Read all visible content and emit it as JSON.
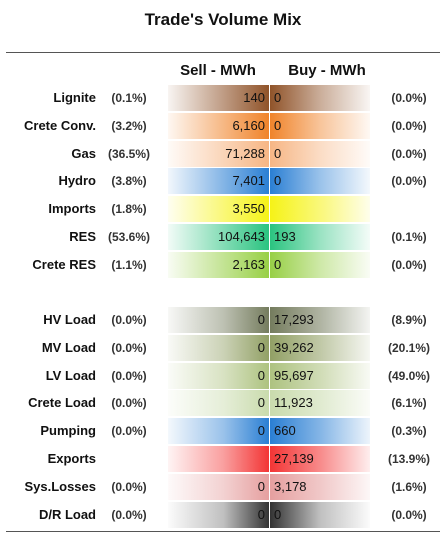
{
  "title": "Trade's Volume Mix",
  "headers": {
    "sell": "Sell - MWh",
    "buy": "Buy - MWh"
  },
  "chart_data": {
    "type": "table",
    "title": "Trade's Volume Mix",
    "columns": [
      "",
      "",
      "Sell - MWh",
      "Buy - MWh",
      ""
    ],
    "groups": [
      {
        "rows": [
          {
            "name": "Lignite",
            "sell_pct": "(0.1%)",
            "sell": "140",
            "buy": "0",
            "buy_pct": "(0.0%)",
            "color": "#8a4a1e"
          },
          {
            "name": "Crete Conv.",
            "sell_pct": "(3.2%)",
            "sell": "6,160",
            "buy": "0",
            "buy_pct": "(0.0%)",
            "color": "#ef7d1f"
          },
          {
            "name": "Gas",
            "sell_pct": "(36.5%)",
            "sell": "71,288",
            "buy": "0",
            "buy_pct": "(0.0%)",
            "color": "#f6b27e"
          },
          {
            "name": "Hydro",
            "sell_pct": "(3.8%)",
            "sell": "7,401",
            "buy": "0",
            "buy_pct": "(0.0%)",
            "color": "#1f78d1"
          },
          {
            "name": "Imports",
            "sell_pct": "(1.8%)",
            "sell": "3,550",
            "buy": "",
            "buy_pct": "",
            "color": "#f5f20a"
          },
          {
            "name": "RES",
            "sell_pct": "(53.6%)",
            "sell": "104,643",
            "buy": "193",
            "buy_pct": "(0.1%)",
            "color": "#1fc079"
          },
          {
            "name": "Crete RES",
            "sell_pct": "(1.1%)",
            "sell": "2,163",
            "buy": "0",
            "buy_pct": "(0.0%)",
            "color": "#92cd3c"
          }
        ]
      },
      {
        "rows": [
          {
            "name": "HV Load",
            "sell_pct": "(0.0%)",
            "sell": "0",
            "buy": "17,293",
            "buy_pct": "(8.9%)",
            "color": "#6d7555"
          },
          {
            "name": "MV Load",
            "sell_pct": "(0.0%)",
            "sell": "0",
            "buy": "39,262",
            "buy_pct": "(20.1%)",
            "color": "#8c9b5d"
          },
          {
            "name": "LV Load",
            "sell_pct": "(0.0%)",
            "sell": "0",
            "buy": "95,697",
            "buy_pct": "(49.0%)",
            "color": "#a9bf79"
          },
          {
            "name": "Crete Load",
            "sell_pct": "(0.0%)",
            "sell": "0",
            "buy": "11,923",
            "buy_pct": "(6.1%)",
            "color": "#c6d9a8"
          },
          {
            "name": "Pumping",
            "sell_pct": "(0.0%)",
            "sell": "0",
            "buy": "660",
            "buy_pct": "(0.3%)",
            "color": "#1f78d1"
          },
          {
            "name": "Exports",
            "sell_pct": "",
            "sell": "",
            "buy": "27,139",
            "buy_pct": "(13.9%)",
            "color": "#f22a2a"
          },
          {
            "name": "Sys.Losses",
            "sell_pct": "(0.0%)",
            "sell": "0",
            "buy": "3,178",
            "buy_pct": "(1.6%)",
            "color": "#e49a9a"
          },
          {
            "name": "D/R Load",
            "sell_pct": "(0.0%)",
            "sell": "0",
            "buy": "0",
            "buy_pct": "(0.0%)",
            "color": "#4a4a4a"
          }
        ]
      }
    ]
  }
}
